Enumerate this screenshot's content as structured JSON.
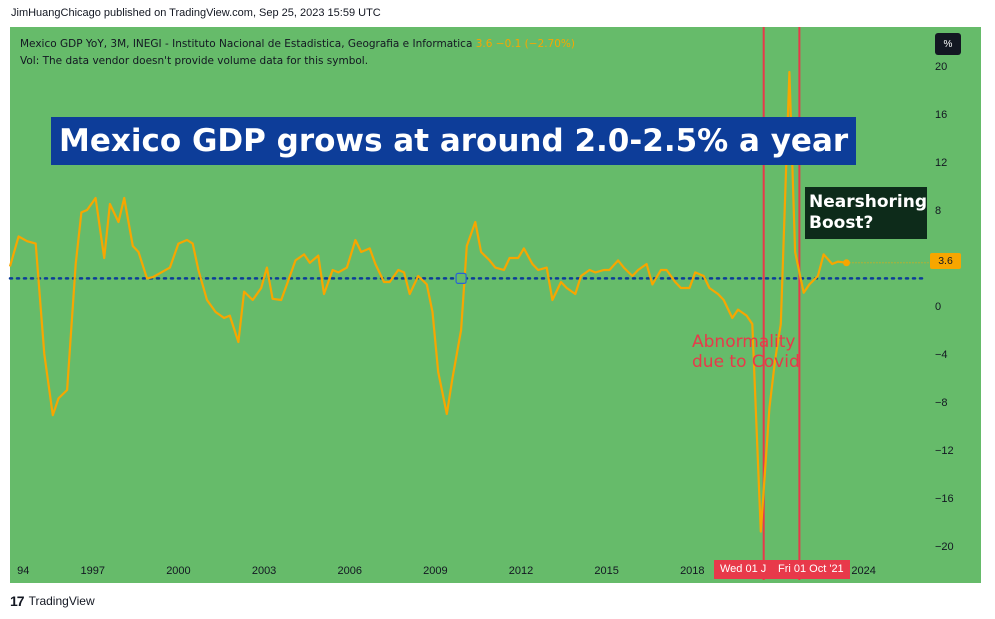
{
  "publisher_line": "JimHuangChicago published on TradingView.com, Sep 25, 2023 15:59 UTC",
  "legend": {
    "line1": "Mexico GDP YoY, 3M, INEGI - Instituto Nacional de Estadistica, Geografia e Informatica",
    "value_text": "3.6  −0.1 (−2.70%)",
    "line2": "Vol: The data vendor doesn't provide volume data for this symbol."
  },
  "scale_button": "%",
  "annotations": {
    "headline": "Mexico GDP grows at around 2.0-2.5% a year",
    "nearshoring_line1": "Nearshoring",
    "nearshoring_line2": "Boost?",
    "covid_line1": "Abnormality",
    "covid_line2": "due to Covid"
  },
  "badges": {
    "last_value": "3.6",
    "date_left": "Wed 01 J",
    "date_right": "Fri 01 Oct '21"
  },
  "footer": {
    "logo": "17",
    "brand": "TradingView"
  },
  "colors": {
    "background": "#66bb6a",
    "line": "#f7a600",
    "reference": "#0d3d99",
    "marker": "#e8394a",
    "headline_bg": "#0d3d99",
    "callout_bg": "#0d2b1a"
  },
  "chart_data": {
    "type": "line",
    "x_ticks": [
      "94",
      "1997",
      "2000",
      "2003",
      "2006",
      "2009",
      "2012",
      "2015",
      "2018",
      "2024"
    ],
    "y_ticks": [
      "20",
      "16",
      "12",
      "8",
      "4",
      "0",
      "−4",
      "−8",
      "−12",
      "−16",
      "−20"
    ],
    "ylim": [
      -23,
      23
    ],
    "xlim": [
      1994.1,
      2025.8
    ],
    "reference_line": 2.3,
    "vertical_markers": [
      2020.5,
      2021.75
    ],
    "series": [
      {
        "values": [
          [
            1994.1,
            3.3
          ],
          [
            1994.4,
            5.8
          ],
          [
            1994.7,
            5.4
          ],
          [
            1995.0,
            5.2
          ],
          [
            1995.3,
            -4.0
          ],
          [
            1995.6,
            -9.1
          ],
          [
            1995.8,
            -7.7
          ],
          [
            1996.1,
            -7.0
          ],
          [
            1996.4,
            3.5
          ],
          [
            1996.6,
            7.8
          ],
          [
            1996.8,
            8.0
          ],
          [
            1997.1,
            9.0
          ],
          [
            1997.4,
            4.0
          ],
          [
            1997.6,
            8.5
          ],
          [
            1997.9,
            7.0
          ],
          [
            1998.1,
            9.0
          ],
          [
            1998.4,
            5.0
          ],
          [
            1998.6,
            4.5
          ],
          [
            1998.9,
            2.3
          ],
          [
            1999.1,
            2.4
          ],
          [
            1999.4,
            2.8
          ],
          [
            1999.7,
            3.2
          ],
          [
            2000.0,
            5.2
          ],
          [
            2000.3,
            5.5
          ],
          [
            2000.5,
            5.2
          ],
          [
            2000.7,
            3.0
          ],
          [
            2001.0,
            0.5
          ],
          [
            2001.3,
            -0.5
          ],
          [
            2001.6,
            -1.0
          ],
          [
            2001.8,
            -0.8
          ],
          [
            2002.1,
            -3.0
          ],
          [
            2002.3,
            1.2
          ],
          [
            2002.6,
            0.5
          ],
          [
            2002.9,
            1.5
          ],
          [
            2003.1,
            3.2
          ],
          [
            2003.3,
            0.6
          ],
          [
            2003.6,
            0.5
          ],
          [
            2003.8,
            1.8
          ],
          [
            2004.1,
            3.8
          ],
          [
            2004.4,
            4.3
          ],
          [
            2004.6,
            3.6
          ],
          [
            2004.9,
            4.2
          ],
          [
            2005.1,
            1.0
          ],
          [
            2005.4,
            3.0
          ],
          [
            2005.6,
            2.8
          ],
          [
            2005.9,
            3.2
          ],
          [
            2006.2,
            5.5
          ],
          [
            2006.4,
            4.5
          ],
          [
            2006.7,
            4.8
          ],
          [
            2006.9,
            3.5
          ],
          [
            2007.2,
            2.0
          ],
          [
            2007.4,
            2.0
          ],
          [
            2007.7,
            3.0
          ],
          [
            2007.9,
            2.8
          ],
          [
            2008.1,
            1.0
          ],
          [
            2008.4,
            2.5
          ],
          [
            2008.7,
            1.8
          ],
          [
            2008.9,
            -0.5
          ],
          [
            2009.1,
            -5.5
          ],
          [
            2009.4,
            -9.0
          ],
          [
            2009.6,
            -6.0
          ],
          [
            2009.9,
            -2.0
          ],
          [
            2010.1,
            5.0
          ],
          [
            2010.4,
            7.0
          ],
          [
            2010.6,
            4.5
          ],
          [
            2010.9,
            3.8
          ],
          [
            2011.1,
            3.2
          ],
          [
            2011.4,
            3.0
          ],
          [
            2011.6,
            4.0
          ],
          [
            2011.9,
            4.0
          ],
          [
            2012.1,
            4.8
          ],
          [
            2012.4,
            3.5
          ],
          [
            2012.6,
            3.0
          ],
          [
            2012.9,
            3.2
          ],
          [
            2013.1,
            0.5
          ],
          [
            2013.4,
            2.0
          ],
          [
            2013.6,
            1.5
          ],
          [
            2013.9,
            1.0
          ],
          [
            2014.1,
            2.5
          ],
          [
            2014.4,
            3.0
          ],
          [
            2014.6,
            2.8
          ],
          [
            2014.9,
            3.0
          ],
          [
            2015.1,
            3.0
          ],
          [
            2015.4,
            3.8
          ],
          [
            2015.6,
            3.2
          ],
          [
            2015.9,
            2.5
          ],
          [
            2016.1,
            3.0
          ],
          [
            2016.4,
            3.5
          ],
          [
            2016.6,
            1.8
          ],
          [
            2016.9,
            3.0
          ],
          [
            2017.1,
            3.0
          ],
          [
            2017.4,
            2.0
          ],
          [
            2017.6,
            1.5
          ],
          [
            2017.9,
            1.5
          ],
          [
            2018.1,
            2.8
          ],
          [
            2018.4,
            2.5
          ],
          [
            2018.6,
            1.5
          ],
          [
            2018.9,
            1.0
          ],
          [
            2019.1,
            0.5
          ],
          [
            2019.4,
            -1.0
          ],
          [
            2019.6,
            -0.3
          ],
          [
            2019.9,
            -0.8
          ],
          [
            2020.1,
            -1.5
          ],
          [
            2020.4,
            -18.8
          ],
          [
            2020.7,
            -8.5
          ],
          [
            2020.9,
            -4.5
          ],
          [
            2021.1,
            -1.5
          ],
          [
            2021.4,
            19.5
          ],
          [
            2021.6,
            4.5
          ],
          [
            2021.9,
            1.1
          ],
          [
            2022.1,
            1.8
          ],
          [
            2022.4,
            2.5
          ],
          [
            2022.6,
            4.3
          ],
          [
            2022.9,
            3.5
          ],
          [
            2023.1,
            3.7
          ],
          [
            2023.4,
            3.6
          ]
        ]
      }
    ]
  }
}
